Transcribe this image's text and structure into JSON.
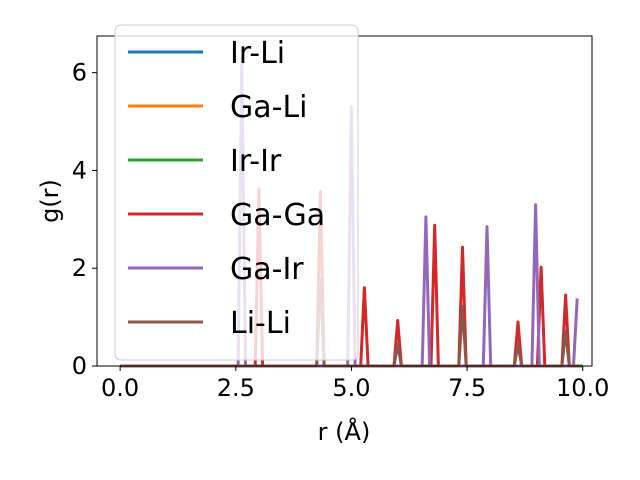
{
  "chart_data": {
    "type": "line",
    "xlabel": "r (Å)",
    "ylabel": "g(r)",
    "xlim": [
      -0.5,
      10.2
    ],
    "ylim": [
      0,
      6.75
    ],
    "xticks": [
      0.0,
      2.5,
      5.0,
      7.5,
      10.0
    ],
    "xtick_labels": [
      "0.0",
      "2.5",
      "5.0",
      "7.5",
      "10.0"
    ],
    "yticks": [
      0,
      2,
      4,
      6
    ],
    "ytick_labels": [
      "0",
      "2",
      "4",
      "6"
    ],
    "grid": false,
    "legend_position": "top-left",
    "series": [
      {
        "name": "Ir-Li",
        "color": "#1f77b4",
        "points": [
          [
            0,
            0
          ],
          [
            10.0,
            0
          ]
        ]
      },
      {
        "name": "Ga-Li",
        "color": "#ff7f0e",
        "points": [
          [
            0,
            0
          ],
          [
            10.0,
            0
          ]
        ]
      },
      {
        "name": "Ir-Ir",
        "color": "#2ca02c",
        "points": [
          [
            0,
            0
          ],
          [
            10.0,
            0
          ]
        ]
      },
      {
        "name": "Ga-Ga",
        "color": "#d62728",
        "points": [
          [
            0,
            0
          ],
          [
            2.92,
            0
          ],
          [
            3.0,
            3.62
          ],
          [
            3.08,
            0
          ],
          [
            4.25,
            0
          ],
          [
            4.33,
            3.57
          ],
          [
            4.41,
            0
          ],
          [
            5.2,
            0
          ],
          [
            5.28,
            1.6
          ],
          [
            5.36,
            0
          ],
          [
            5.92,
            0
          ],
          [
            6.0,
            0.93
          ],
          [
            6.08,
            0
          ],
          [
            6.72,
            0
          ],
          [
            6.8,
            2.88
          ],
          [
            6.88,
            0
          ],
          [
            7.32,
            0
          ],
          [
            7.4,
            2.43
          ],
          [
            7.48,
            0
          ],
          [
            8.52,
            0
          ],
          [
            8.6,
            0.9
          ],
          [
            8.68,
            0
          ],
          [
            9.02,
            0
          ],
          [
            9.1,
            2.02
          ],
          [
            9.18,
            0
          ],
          [
            9.55,
            0
          ],
          [
            9.63,
            1.45
          ],
          [
            9.71,
            0
          ],
          [
            9.95,
            0
          ]
        ]
      },
      {
        "name": "Ga-Ir",
        "color": "#9467bd",
        "points": [
          [
            0,
            0
          ],
          [
            2.55,
            0
          ],
          [
            2.63,
            6.3
          ],
          [
            2.71,
            0
          ],
          [
            4.92,
            0
          ],
          [
            5.0,
            5.3
          ],
          [
            5.08,
            0
          ],
          [
            6.53,
            0
          ],
          [
            6.61,
            3.05
          ],
          [
            6.69,
            0
          ],
          [
            7.85,
            0
          ],
          [
            7.93,
            2.85
          ],
          [
            8.01,
            0
          ],
          [
            8.9,
            0
          ],
          [
            8.98,
            3.3
          ],
          [
            9.06,
            0
          ],
          [
            9.8,
            0
          ],
          [
            9.88,
            1.38
          ]
        ]
      },
      {
        "name": "Li-Li",
        "color": "#8c564b",
        "points": [
          [
            0,
            0
          ],
          [
            4.25,
            0
          ],
          [
            4.33,
            1.78
          ],
          [
            4.41,
            0
          ],
          [
            5.92,
            0
          ],
          [
            6.0,
            0.45
          ],
          [
            6.08,
            0
          ],
          [
            7.32,
            0
          ],
          [
            7.4,
            1.22
          ],
          [
            7.48,
            0
          ],
          [
            8.52,
            0
          ],
          [
            8.6,
            0.45
          ],
          [
            8.68,
            0
          ],
          [
            9.55,
            0
          ],
          [
            9.63,
            0.72
          ],
          [
            9.71,
            0
          ],
          [
            9.95,
            0
          ]
        ]
      }
    ]
  }
}
